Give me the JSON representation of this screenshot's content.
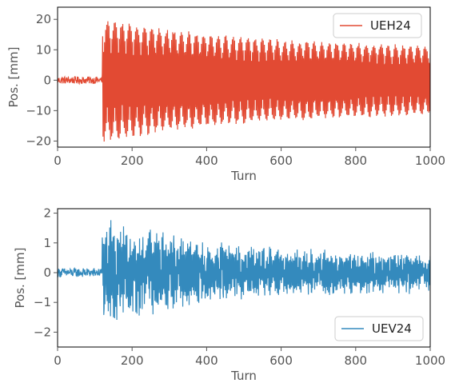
{
  "chart_data": [
    {
      "type": "line",
      "series": [
        {
          "name": "UEH24",
          "color": "#e24a33",
          "kick_turn": 120,
          "envelope": [
            {
              "turn": 0,
              "amp": 1.2
            },
            {
              "turn": 119,
              "amp": 1.2
            },
            {
              "turn": 120,
              "amp": 20.5
            },
            {
              "turn": 150,
              "amp": 20
            },
            {
              "turn": 200,
              "amp": 19
            },
            {
              "turn": 300,
              "amp": 17
            },
            {
              "turn": 400,
              "amp": 15.5
            },
            {
              "turn": 500,
              "amp": 14.5
            },
            {
              "turn": 600,
              "amp": 13.5
            },
            {
              "turn": 700,
              "amp": 13
            },
            {
              "turn": 800,
              "amp": 12.5
            },
            {
              "turn": 900,
              "amp": 12
            },
            {
              "turn": 1000,
              "amp": 11.5
            }
          ]
        }
      ],
      "xlabel": "Turn",
      "ylabel": "Pos. [mm]",
      "xlim": [
        0,
        1000
      ],
      "ylim": [
        -22,
        24
      ],
      "xticks": [
        "0",
        "200",
        "400",
        "600",
        "800",
        "1000"
      ],
      "xtick_values": [
        0,
        200,
        400,
        600,
        800,
        1000
      ],
      "yticks": [
        "−20",
        "−10",
        "0",
        "10",
        "20"
      ],
      "ytick_values": [
        -20,
        -10,
        0,
        10,
        20
      ],
      "legend": "top-right",
      "grid": false
    },
    {
      "type": "line",
      "series": [
        {
          "name": "UEV24",
          "color": "#348abd",
          "kick_turn": 120,
          "envelope": [
            {
              "turn": 0,
              "amp": 0.15
            },
            {
              "turn": 119,
              "amp": 0.15
            },
            {
              "turn": 120,
              "amp": 1.7
            },
            {
              "turn": 150,
              "amp": 1.9
            },
            {
              "turn": 200,
              "amp": 1.6
            },
            {
              "turn": 300,
              "amp": 1.4
            },
            {
              "turn": 400,
              "amp": 1.15
            },
            {
              "turn": 500,
              "amp": 0.95
            },
            {
              "turn": 600,
              "amp": 0.85
            },
            {
              "turn": 700,
              "amp": 0.8
            },
            {
              "turn": 800,
              "amp": 0.75
            },
            {
              "turn": 900,
              "amp": 0.75
            },
            {
              "turn": 1000,
              "amp": 0.7
            }
          ]
        }
      ],
      "xlabel": "Turn",
      "ylabel": "Pos. [mm]",
      "xlim": [
        0,
        1000
      ],
      "ylim": [
        -2.5,
        2.15
      ],
      "xticks": [
        "0",
        "200",
        "400",
        "600",
        "800",
        "1000"
      ],
      "xtick_values": [
        0,
        200,
        400,
        600,
        800,
        1000
      ],
      "yticks": [
        "−2",
        "−1",
        "0",
        "1",
        "2"
      ],
      "ytick_values": [
        -2,
        -1,
        0,
        1,
        2
      ],
      "legend": "bottom-right",
      "grid": false
    }
  ]
}
